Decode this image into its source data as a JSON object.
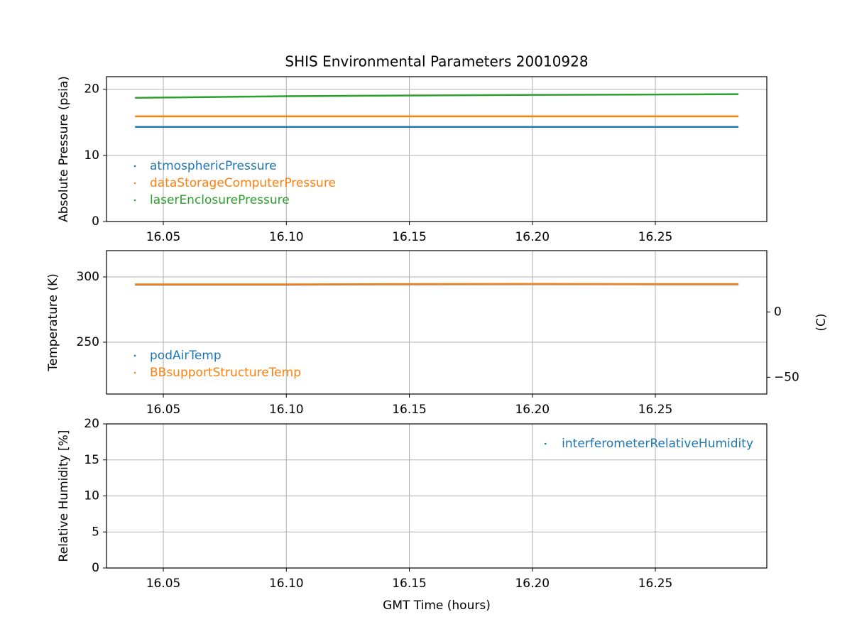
{
  "chart_data": [
    {
      "type": "line",
      "title": "SHIS Environmental Parameters 20010928",
      "ylabel": "Absolute Pressure (psia)",
      "x": [
        16.0385,
        16.1,
        16.15,
        16.2,
        16.25,
        16.2838
      ],
      "series": [
        {
          "name": "atmosphericPressure",
          "color": "#1f77b4",
          "values": [
            14.3,
            14.3,
            14.3,
            14.3,
            14.3,
            14.3
          ]
        },
        {
          "name": "dataStorageComputerPressure",
          "color": "#ff7f0e",
          "values": [
            15.9,
            15.9,
            15.9,
            15.9,
            15.9,
            15.9
          ]
        },
        {
          "name": "laserEnclosurePressure",
          "color": "#2ca02c",
          "values": [
            18.7,
            18.95,
            19.05,
            19.15,
            19.2,
            19.25
          ]
        }
      ],
      "xlim": [
        16.0269,
        16.2953
      ],
      "xticks": [
        16.05,
        {
          "value": 16.1,
          "label": "16.10"
        },
        16.15,
        {
          "value": 16.2,
          "label": "16.20"
        },
        16.25
      ],
      "ylim": [
        0,
        21.9
      ],
      "yticks": [
        0,
        10,
        20
      ],
      "grid": true,
      "legend": "lower left"
    },
    {
      "type": "line",
      "ylabel": "Temperature (K)",
      "y2label": "(C)",
      "x": [
        16.0385,
        16.1,
        16.15,
        16.2,
        16.25,
        16.2838
      ],
      "series": [
        {
          "name": "podAirTemp",
          "color": "#1f77b4",
          "values": [
            294,
            294,
            294.3,
            294.4,
            294.3,
            294.3
          ]
        },
        {
          "name": "BBsupportStructureTemp",
          "color": "#ff7f0e",
          "values": [
            294.3,
            294.3,
            294.5,
            294.6,
            294.5,
            294.5
          ]
        }
      ],
      "xlim": [
        16.0269,
        16.2953
      ],
      "xticks": [
        16.05,
        {
          "value": 16.1,
          "label": "16.10"
        },
        16.15,
        {
          "value": 16.2,
          "label": "16.20"
        },
        16.25
      ],
      "ylim": [
        210.3,
        320.1
      ],
      "yticks": [
        250,
        300
      ],
      "y2lim": [
        -62.85,
        46.95
      ],
      "y2ticks": [
        {
          "value": -50,
          "label": "−50"
        },
        0
      ],
      "grid": true,
      "legend": "lower left"
    },
    {
      "type": "line",
      "ylabel": "Relative Humidity [%]",
      "xlabel": "GMT Time (hours)",
      "x": [
        16.0385,
        16.1,
        16.15,
        16.2,
        16.25,
        16.2838
      ],
      "series": [
        {
          "name": "interferometerRelativeHumidity",
          "color": "#1f77b4",
          "values": [
            null,
            null,
            null,
            null,
            null,
            null
          ]
        }
      ],
      "xlim": [
        16.0269,
        16.2953
      ],
      "xticks": [
        16.05,
        {
          "value": 16.1,
          "label": "16.10"
        },
        16.15,
        {
          "value": 16.2,
          "label": "16.20"
        },
        16.25
      ],
      "ylim": [
        0,
        20
      ],
      "yticks": [
        0,
        5,
        10,
        15,
        20
      ],
      "grid": true,
      "legend": "upper right"
    }
  ]
}
